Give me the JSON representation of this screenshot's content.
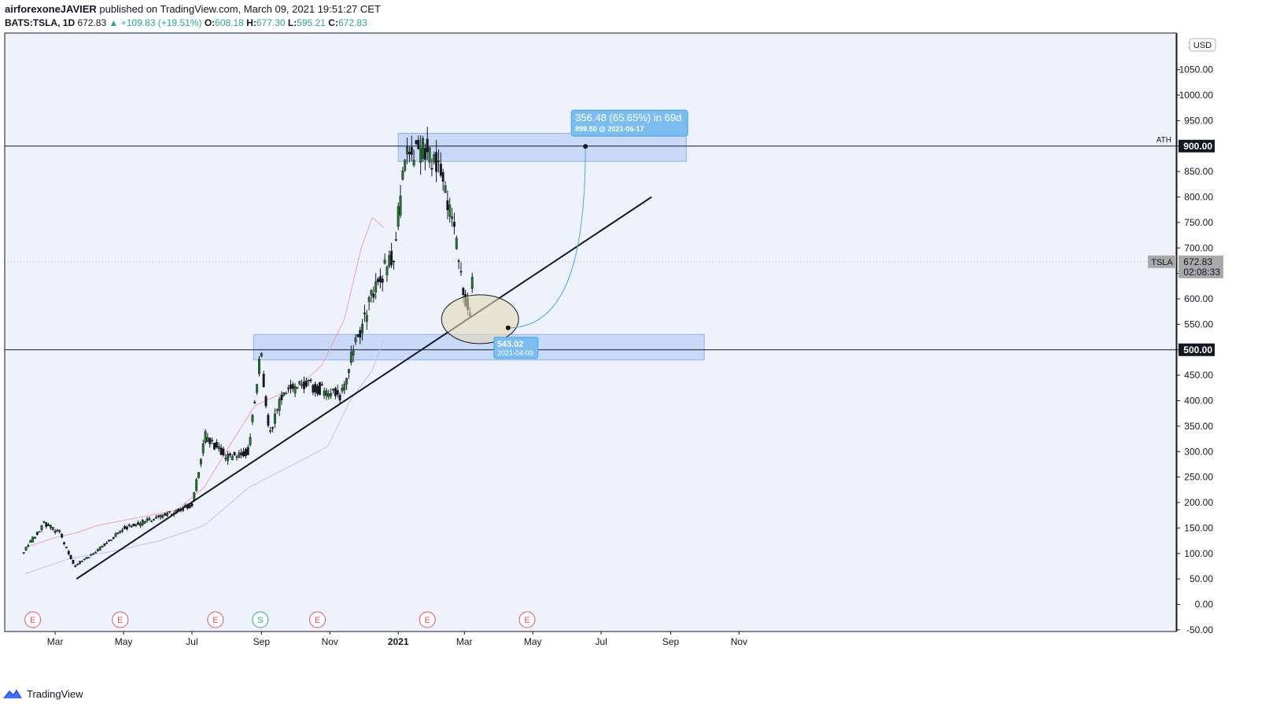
{
  "header": {
    "author": "airforexoneJAVIER",
    "published": "published on TradingView.com, March 09, 2021 19:51:27 CET",
    "symbol": "BATS:TSLA, 1D",
    "last": "672.83",
    "change": "▲ +109.83 (+19.51%)",
    "o_label": "O:",
    "o": "608.18",
    "h_label": "H:",
    "h": "677.30",
    "l_label": "L:",
    "l": "595.21",
    "c_label": "C:",
    "c": "672.83"
  },
  "footer": {
    "brand": "TradingView"
  },
  "colors": {
    "up": "#26a69a",
    "candle_up": "#1e7e1e",
    "candle_down": "#131722",
    "zone": "#bcd2f7",
    "accent": "#4aa6e8",
    "ema_short": "#f4a0ad",
    "ema_long": "#b6c7ef"
  },
  "chart_data": {
    "type": "candlestick",
    "symbol": "TSLA",
    "currency": "USD",
    "x_ticks": [
      "Mar",
      "May",
      "Jul",
      "Sep",
      "Nov",
      "2021",
      "Mar",
      "May",
      "Jul",
      "Sep",
      "Nov"
    ],
    "y_ticks": [
      1050,
      1000,
      950,
      900,
      850,
      800,
      750,
      700,
      650,
      600,
      550,
      500,
      450,
      400,
      350,
      300,
      250,
      200,
      150,
      100,
      50,
      0,
      -50
    ],
    "ylim": [
      -50,
      1100
    ],
    "price_path": [
      [
        "2020-02-01",
        100
      ],
      [
        "2020-02-20",
        160
      ],
      [
        "2020-03-05",
        140
      ],
      [
        "2020-03-18",
        75
      ],
      [
        "2020-04-10",
        110
      ],
      [
        "2020-05-01",
        150
      ],
      [
        "2020-06-01",
        170
      ],
      [
        "2020-07-01",
        195
      ],
      [
        "2020-07-13",
        330
      ],
      [
        "2020-08-01",
        290
      ],
      [
        "2020-08-20",
        300
      ],
      [
        "2020-08-31",
        500
      ],
      [
        "2020-09-08",
        330
      ],
      [
        "2020-09-20",
        420
      ],
      [
        "2020-10-15",
        430
      ],
      [
        "2020-11-10",
        410
      ],
      [
        "2020-11-24",
        510
      ],
      [
        "2020-12-10",
        620
      ],
      [
        "2020-12-28",
        690
      ],
      [
        "2021-01-08",
        880
      ],
      [
        "2021-01-26",
        890
      ],
      [
        "2021-02-08",
        860
      ],
      [
        "2021-02-22",
        700
      ],
      [
        "2021-03-05",
        560
      ],
      [
        "2021-03-09",
        672.83
      ]
    ],
    "ema_short": [
      [
        5,
        115
      ],
      [
        25,
        130
      ],
      [
        45,
        140
      ],
      [
        65,
        155
      ],
      [
        100,
        170
      ],
      [
        135,
        185
      ],
      [
        160,
        230
      ],
      [
        185,
        320
      ],
      [
        205,
        390
      ],
      [
        225,
        410
      ],
      [
        245,
        430
      ],
      [
        265,
        470
      ],
      [
        285,
        560
      ],
      [
        300,
        700
      ],
      [
        310,
        760
      ],
      [
        320,
        740
      ]
    ],
    "ema_long": [
      [
        0,
        60
      ],
      [
        40,
        90
      ],
      [
        80,
        105
      ],
      [
        120,
        125
      ],
      [
        160,
        155
      ],
      [
        200,
        230
      ],
      [
        240,
        275
      ],
      [
        270,
        310
      ],
      [
        290,
        400
      ],
      [
        310,
        460
      ],
      [
        320,
        520
      ]
    ],
    "trendline": {
      "from": [
        "2020-03-20",
        50
      ],
      "to": [
        "2021-08-15",
        800
      ]
    },
    "horizontal_lines": [
      {
        "price": 900,
        "label": "ATH",
        "value_label": "900.00"
      },
      {
        "price": 500,
        "value_label": "500.00"
      }
    ],
    "zones": [
      {
        "from": "2021-01-01",
        "to": "2021-09-15",
        "top": 925,
        "bottom": 870
      },
      {
        "from": "2020-08-25",
        "to": "2021-10-01",
        "top": 530,
        "bottom": 480
      }
    ],
    "projection": {
      "start": {
        "date": "2021-04-09",
        "price": 543.02
      },
      "end": {
        "date": "2021-06-17",
        "price": 899.5
      },
      "start_label": "543.02",
      "start_date": "2021-04-09",
      "end_label": "356.48 (65.65%) in 69d",
      "end_sub": "899.50 @ 2021-06-17"
    },
    "current_price": {
      "symbol": "TSLA",
      "price": "672.83",
      "countdown": "02:08:33"
    },
    "events": [
      {
        "date": "2020-02-10",
        "type": "E"
      },
      {
        "date": "2020-04-28",
        "type": "E"
      },
      {
        "date": "2020-07-22",
        "type": "E"
      },
      {
        "date": "2020-08-31",
        "type": "S"
      },
      {
        "date": "2020-10-21",
        "type": "E"
      },
      {
        "date": "2021-01-27",
        "type": "E"
      },
      {
        "date": "2021-04-26",
        "type": "E"
      }
    ]
  }
}
